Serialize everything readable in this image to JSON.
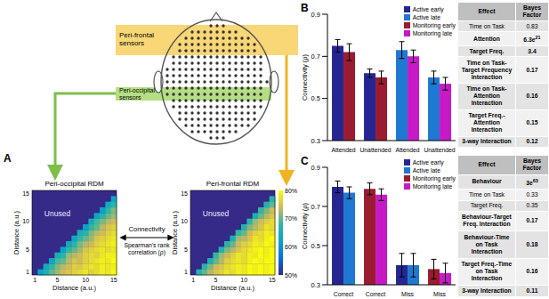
{
  "panel_labels": [
    "A",
    "B",
    "C"
  ],
  "head": {
    "frontal_label": [
      "Peri-frontal",
      "sensors"
    ],
    "occipital_label": [
      "Peri-occipital",
      "sensors"
    ]
  },
  "rdms": [
    {
      "title": "Peri-occipital RDM",
      "unused_label": "Unused",
      "xlabel": "Distance (a.u.)",
      "ylabel": "Distance (a.u.)",
      "xticks": [
        1,
        5,
        10,
        15
      ],
      "yticks": [
        1,
        5,
        10,
        15
      ],
      "cells": [
        [
          62,
          66,
          70,
          72,
          74,
          75,
          76,
          77,
          78,
          76,
          77,
          79,
          78,
          80
        ],
        [
          64,
          68,
          71,
          73,
          74,
          76,
          75,
          77,
          78,
          77,
          79,
          78,
          79
        ],
        [
          63,
          69,
          70,
          73,
          75,
          74,
          76,
          77,
          78,
          79,
          78,
          80
        ],
        [
          65,
          67,
          72,
          73,
          74,
          76,
          77,
          76,
          78,
          79,
          79
        ],
        [
          62,
          68,
          70,
          72,
          75,
          76,
          77,
          78,
          77,
          78
        ],
        [
          64,
          67,
          71,
          73,
          74,
          76,
          77,
          78,
          79
        ],
        [
          63,
          68,
          70,
          72,
          75,
          76,
          77,
          78
        ],
        [
          65,
          67,
          71,
          73,
          74,
          76,
          77
        ],
        [
          62,
          68,
          70,
          73,
          75,
          76
        ],
        [
          64,
          69,
          71,
          73,
          74
        ],
        [
          63,
          67,
          70,
          72
        ],
        [
          62,
          68,
          71
        ],
        [
          64,
          67
        ],
        [
          63
        ]
      ]
    },
    {
      "title": "Peri-frontal RDM",
      "unused_label": "Unused",
      "xlabel": "Distance (a.u.)",
      "ylabel": "Distance (a.u.)",
      "xticks": [
        1,
        5,
        10,
        15
      ],
      "yticks": [
        1,
        5,
        10,
        15
      ],
      "cells": [
        [
          66,
          70,
          73,
          75,
          76,
          78,
          77,
          79,
          78,
          80,
          79,
          80,
          79,
          80
        ],
        [
          67,
          71,
          74,
          75,
          77,
          78,
          79,
          78,
          80,
          79,
          80,
          79,
          80
        ],
        [
          65,
          70,
          73,
          76,
          77,
          78,
          77,
          79,
          80,
          79,
          80,
          80
        ],
        [
          68,
          72,
          74,
          76,
          78,
          77,
          79,
          78,
          80,
          79,
          80
        ],
        [
          66,
          71,
          73,
          75,
          77,
          78,
          79,
          80,
          79,
          80
        ],
        [
          67,
          70,
          74,
          76,
          77,
          79,
          78,
          80,
          79
        ],
        [
          65,
          72,
          73,
          75,
          78,
          77,
          79,
          80
        ],
        [
          68,
          70,
          74,
          76,
          77,
          79,
          78
        ],
        [
          66,
          71,
          73,
          75,
          78,
          77
        ],
        [
          67,
          72,
          74,
          76,
          77
        ],
        [
          65,
          70,
          73,
          75
        ],
        [
          68,
          71,
          74
        ],
        [
          66,
          70
        ],
        [
          67
        ]
      ]
    }
  ],
  "colorbar": {
    "range": [
      50,
      80
    ],
    "ticks": [
      {
        "value": 50,
        "label": "50%"
      },
      {
        "value": 60,
        "label": "60%"
      },
      {
        "value": 70,
        "label": "70%"
      },
      {
        "value": 80,
        "label": "80%"
      }
    ]
  },
  "connectivity": {
    "label": "Connectivity",
    "sublabel": [
      "Spearman's rank",
      "correlation (ρ)"
    ]
  },
  "chart_data": [
    {
      "type": "bar",
      "ylabel": "Connectivity (ρ)",
      "categories": [
        "Attended",
        "Unattended",
        "Attended",
        "Unattended"
      ],
      "ylim": [
        0.3,
        0.9
      ],
      "yticks": [
        0.3,
        0.5,
        0.7,
        0.9
      ],
      "legend": "top-right",
      "series": [
        {
          "name": "Active early",
          "color": "#262693",
          "values": [
            0.75,
            0.62,
            null,
            null
          ],
          "errors": [
            0.03,
            0.02,
            null,
            null
          ]
        },
        {
          "name": "Active late",
          "color": "#1f78d1",
          "values": [
            null,
            null,
            0.73,
            0.6
          ],
          "errors": [
            null,
            null,
            0.04,
            0.03
          ]
        },
        {
          "name": "Monitoring early",
          "color": "#9b1b30",
          "values": [
            0.72,
            0.6,
            null,
            null
          ],
          "errors": [
            0.04,
            0.03,
            null,
            null
          ]
        },
        {
          "name": "Monitoring late",
          "color": "#c71ac7",
          "values": [
            null,
            null,
            0.7,
            0.57
          ],
          "errors": [
            null,
            null,
            0.03,
            0.03
          ]
        }
      ]
    },
    {
      "type": "bar",
      "ylabel": "Connectivity (ρ)",
      "categories": [
        "Correct",
        "Correct",
        "Miss",
        "Miss"
      ],
      "ylim": [
        0.3,
        0.9
      ],
      "yticks": [
        0.3,
        0.5,
        0.7,
        0.9
      ],
      "legend": "top-right",
      "series": [
        {
          "name": "Active early",
          "color": "#262693",
          "values": [
            0.8,
            null,
            0.4,
            null
          ],
          "errors": [
            0.03,
            null,
            0.06,
            null
          ]
        },
        {
          "name": "Active late",
          "color": "#1f78d1",
          "values": [
            0.77,
            null,
            0.4,
            null
          ],
          "errors": [
            0.03,
            null,
            0.06,
            null
          ]
        },
        {
          "name": "Monitoring early",
          "color": "#9b1b30",
          "values": [
            null,
            0.79,
            null,
            0.38
          ],
          "errors": [
            null,
            0.03,
            null,
            0.05
          ]
        },
        {
          "name": "Monitoring late",
          "color": "#c71ac7",
          "values": [
            null,
            0.76,
            null,
            0.36
          ],
          "errors": [
            null,
            0.03,
            null,
            0.05
          ]
        }
      ]
    }
  ],
  "tables": [
    {
      "header": [
        "Effect",
        "Bayes Factor"
      ],
      "rows": [
        {
          "effect": "Time on Task",
          "bayes_factor": "0.83",
          "bold": false
        },
        {
          "effect": "Attention",
          "bayes_factor": "6.3e21",
          "bold": true
        },
        {
          "effect": "Target Freq.",
          "bayes_factor": "3.4",
          "bold": true
        },
        {
          "effect": "Time on Task-Target Frequency Interaction",
          "bayes_factor": "0.17",
          "bold": true
        },
        {
          "effect": "Time on Task-Attention Interaction",
          "bayes_factor": "0.16",
          "bold": true
        },
        {
          "effect": "Target Freq.-Attention Interaction",
          "bayes_factor": "0.15",
          "bold": true
        },
        {
          "effect": "3-way Interaction",
          "bayes_factor": "0.12",
          "bold": true
        }
      ]
    },
    {
      "header": [
        "Effect",
        "Bayes Factor"
      ],
      "rows": [
        {
          "effect": "Behaviour",
          "bayes_factor": "3e63",
          "bold": true
        },
        {
          "effect": "Time on Task",
          "bayes_factor": "0.33",
          "bold": false
        },
        {
          "effect": "Target Freq.",
          "bayes_factor": "0.35",
          "bold": false
        },
        {
          "effect": "Behaviour-Target Freq. Interaction",
          "bayes_factor": "0.17",
          "bold": true
        },
        {
          "effect": "Behaviour-Time on Task Interaction",
          "bayes_factor": "0.18",
          "bold": true
        },
        {
          "effect": "Target Freq.-Time on Task Interaction",
          "bayes_factor": "0.16",
          "bold": true
        },
        {
          "effect": "3-way Interaction",
          "bayes_factor": "0.11",
          "bold": true
        }
      ]
    }
  ]
}
